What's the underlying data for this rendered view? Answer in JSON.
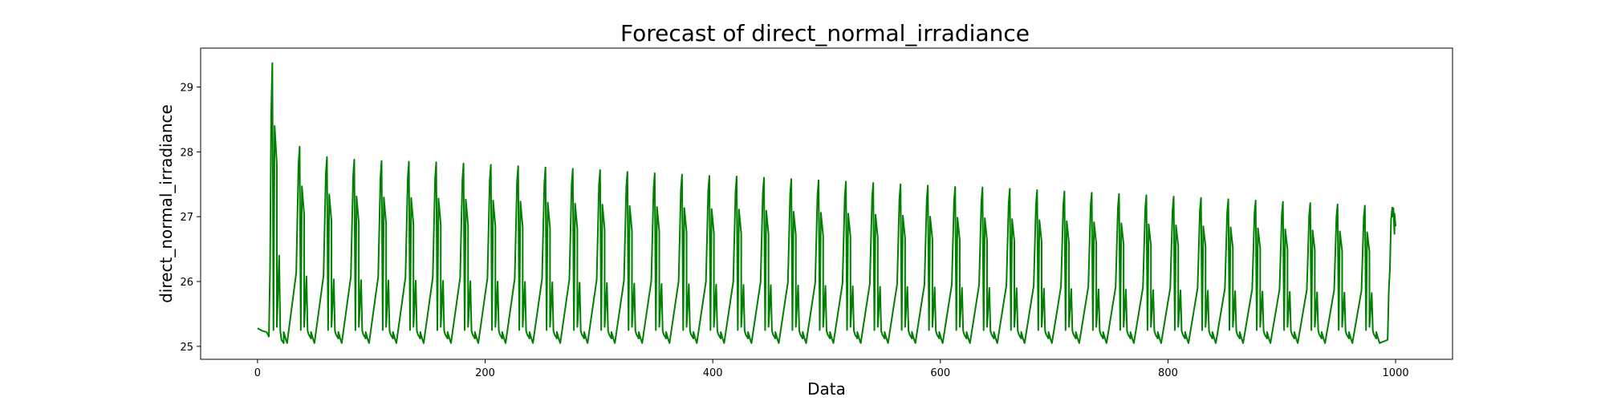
{
  "chart_data": {
    "type": "line",
    "title": "Forecast of direct_normal_irradiance",
    "xlabel": "Data",
    "ylabel": "direct_normal_irradiance",
    "xlim": [
      -50,
      1050
    ],
    "ylim": [
      24.8,
      29.6
    ],
    "xticks": [
      0,
      200,
      400,
      600,
      800,
      1000
    ],
    "yticks": [
      25,
      26,
      27,
      28,
      29
    ],
    "grid": false,
    "series": [
      {
        "color": "#008000",
        "period": 24,
        "n_points": 1000,
        "baseline": 25.3,
        "first_peak": {
          "x": 13,
          "y": 29.37
        },
        "peaks_x": [
          37,
          61,
          85,
          109,
          133,
          157,
          181,
          205,
          229,
          253,
          277,
          301,
          325,
          349,
          373,
          397,
          421,
          445,
          469,
          493,
          517,
          541,
          565,
          589,
          613,
          637,
          661,
          685,
          709,
          733,
          757,
          781,
          805,
          829,
          853,
          877,
          901,
          925,
          949,
          973,
          997
        ],
        "peaks_y": [
          28.08,
          27.92,
          27.88,
          27.86,
          27.85,
          27.84,
          27.82,
          27.8,
          27.78,
          27.76,
          27.74,
          27.72,
          27.69,
          27.67,
          27.65,
          27.63,
          27.62,
          27.6,
          27.58,
          27.56,
          27.54,
          27.52,
          27.5,
          27.48,
          27.46,
          27.45,
          27.43,
          27.41,
          27.39,
          27.37,
          27.35,
          27.33,
          27.31,
          27.29,
          27.27,
          27.25,
          27.23,
          27.21,
          27.19,
          27.17,
          27.14
        ],
        "troughs_y": 25.05,
        "end_point": {
          "x": 1000,
          "y": 26.85
        }
      }
    ]
  }
}
